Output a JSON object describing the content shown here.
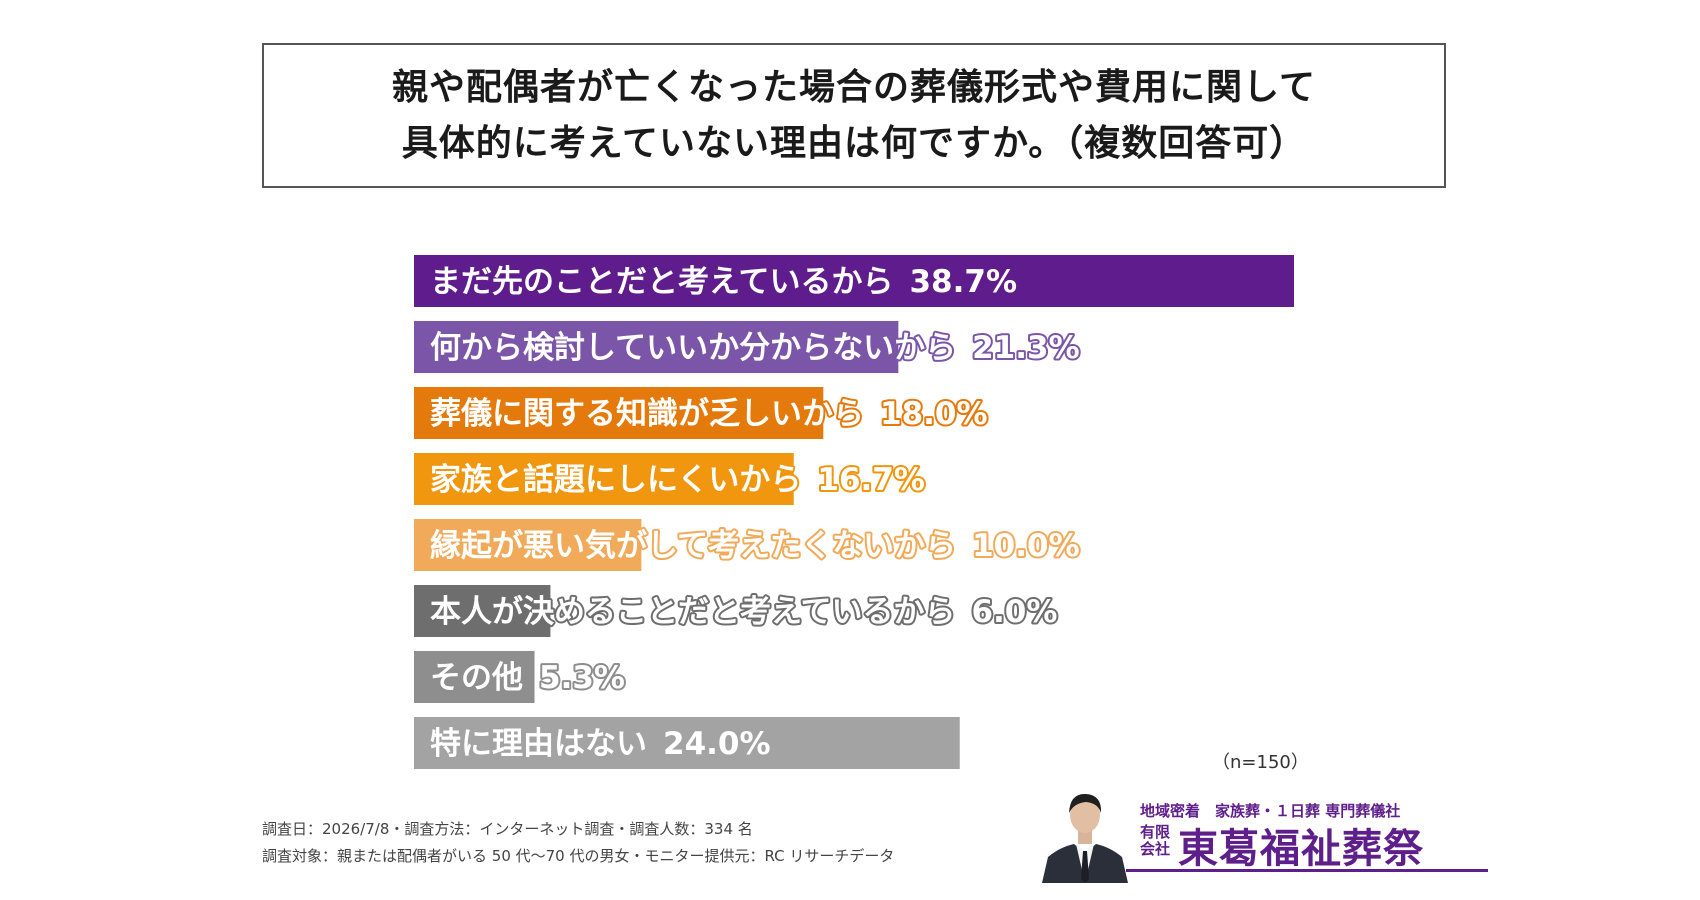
{
  "title": {
    "line1": "親や配偶者が亡くなった場合の葬儀形式や費用に関して",
    "line2": "具体的に考えていない理由は何ですか。（複数回答可）"
  },
  "chart_data": {
    "type": "bar",
    "orientation": "horizontal",
    "categories": [
      "まだ先のことだと考えているから",
      "何から検討していいか分からないから",
      "葬儀に関する知識が乏しいから",
      "家族と話題にしにくいから",
      "縁起が悪い気がして考えたくないから",
      "本人が決めることだと考えているから",
      "その他",
      "特に理由はない"
    ],
    "values": [
      38.7,
      21.3,
      18.0,
      16.7,
      10.0,
      6.0,
      5.3,
      24.0
    ],
    "value_labels": [
      "38.7%",
      "21.3%",
      "18.0%",
      "16.7%",
      "10.0%",
      "6.0%",
      "5.3%",
      "24.0%"
    ],
    "colors": [
      "#5e1c8c",
      "#7b56a8",
      "#e57a0c",
      "#f0960f",
      "#f0aa5a",
      "#6e6e6e",
      "#8e8e8e",
      "#a3a3a3"
    ],
    "xlim": [
      0,
      38.7
    ],
    "grid": false,
    "legend": "none"
  },
  "sample_size": "（n=150）",
  "footnotes": {
    "line1": "調査日：2026/7/8・調査方法：インターネット調査・調査人数：334 名",
    "line2": "調査対象：親または配偶者がいる 50 代〜70 代の男女・モニター提供元：RC リサーチデータ"
  },
  "logo": {
    "tagline": "地域密着　家族葬・１日葬 専門葬儀社",
    "company_type": "有限会社",
    "company_name": "東葛福祉葬祭",
    "color": "#5f1f8b"
  }
}
